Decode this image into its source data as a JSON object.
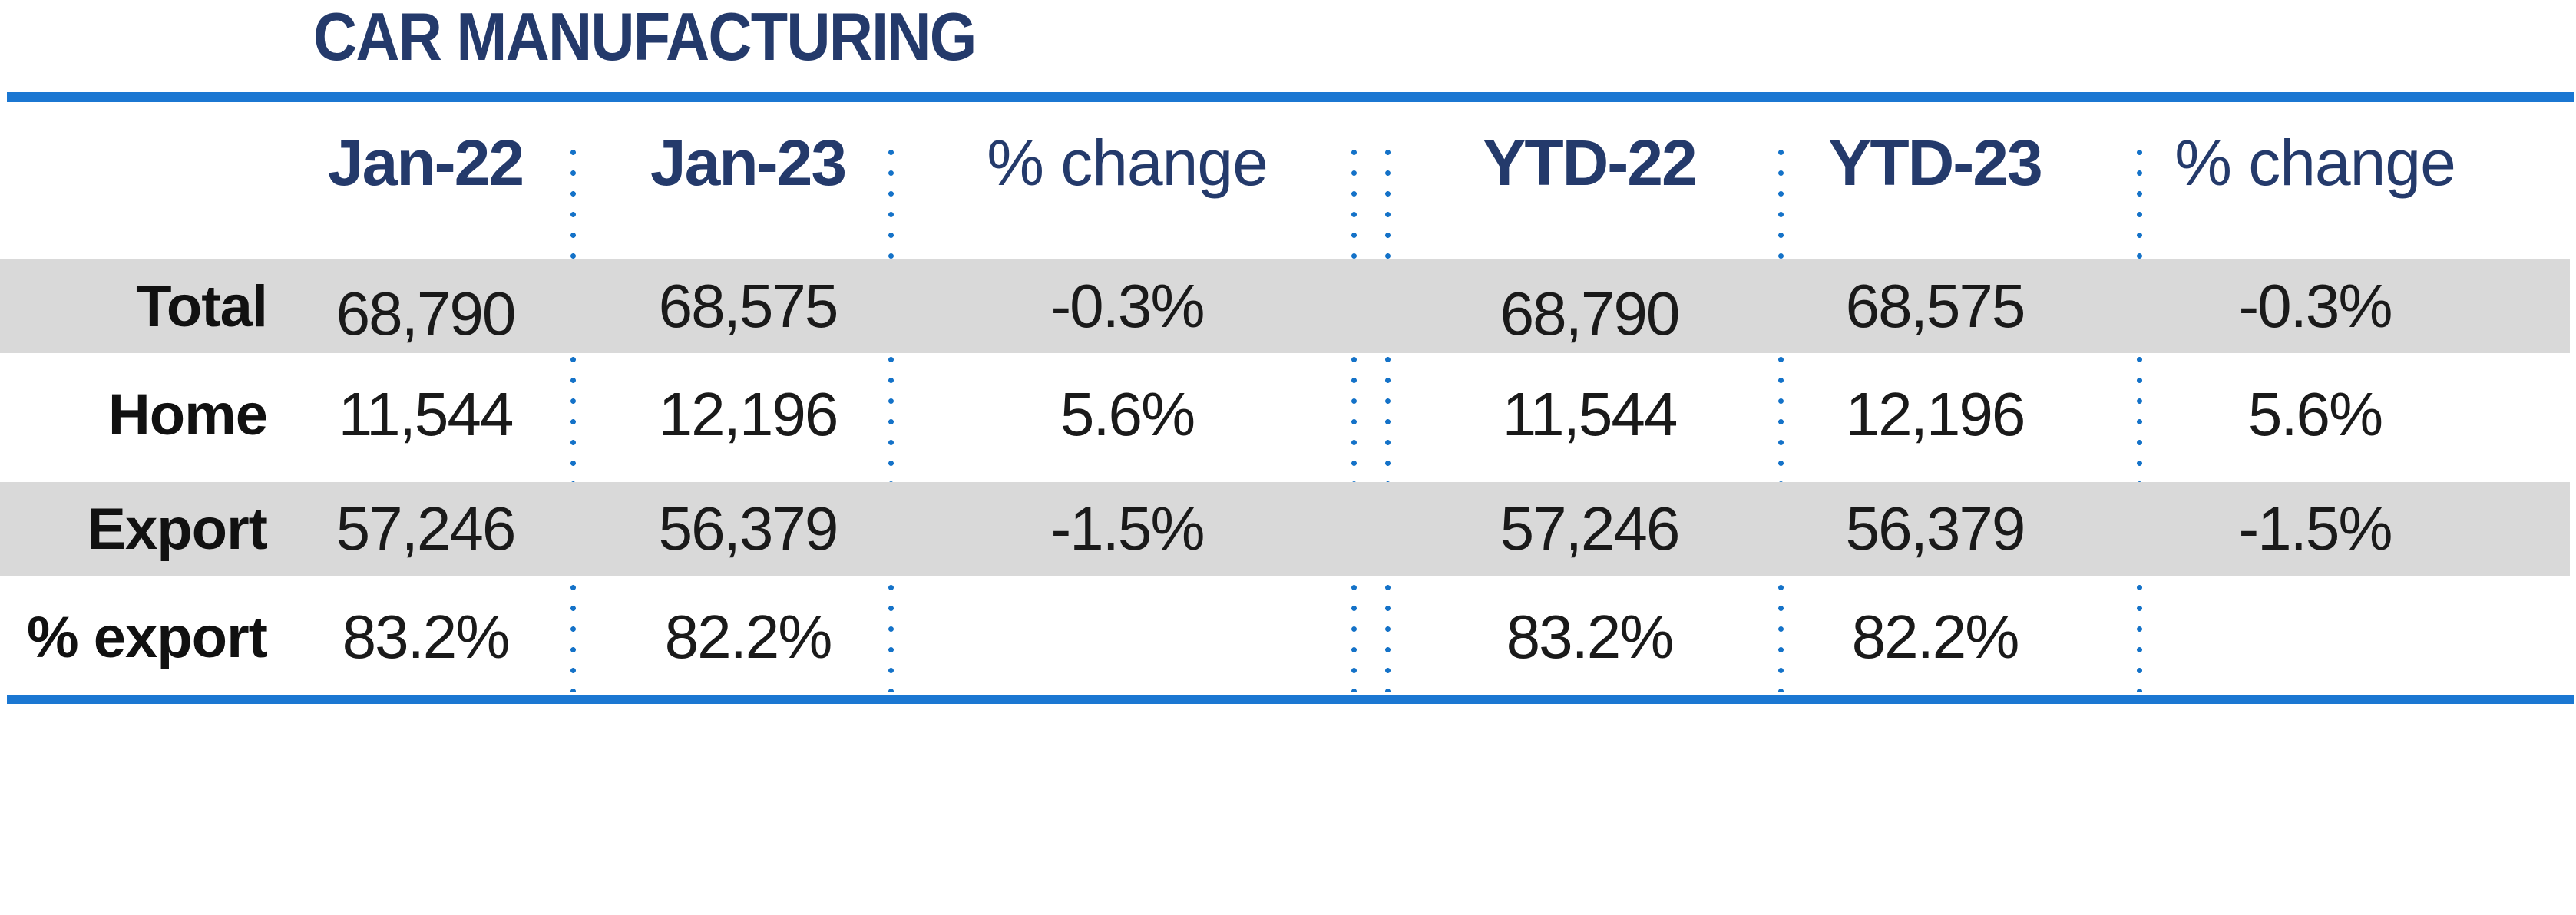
{
  "title": "CAR MANUFACTURING",
  "colors": {
    "navy": "#243A6B",
    "rule_blue": "#1B77D2",
    "dot_blue": "#1472C8",
    "band_grey": "#D9D9D9",
    "text": "#1A1A1A"
  },
  "chart_data": {
    "type": "table",
    "title": "CAR MANUFACTURING",
    "columns": [
      "Jan-22",
      "Jan-23",
      "% change",
      "YTD-22",
      "YTD-23",
      "% change"
    ],
    "row_labels": [
      "Total",
      "Home",
      "Export",
      "% export"
    ],
    "rows": [
      {
        "label": "Total",
        "values": [
          "68,790",
          "68,575",
          "-0.3%",
          "68,790",
          "68,575",
          "-0.3%"
        ]
      },
      {
        "label": "Home",
        "values": [
          "11,544",
          "12,196",
          "5.6%",
          "11,544",
          "12,196",
          "5.6%"
        ]
      },
      {
        "label": "Export",
        "values": [
          "57,246",
          "56,379",
          "-1.5%",
          "57,246",
          "56,379",
          "-1.5%"
        ]
      },
      {
        "label": "% export",
        "values": [
          "83.2%",
          "82.2%",
          "",
          "83.2%",
          "82.2%",
          ""
        ]
      }
    ],
    "layout_hints": {
      "shaded_rows": [
        "Total",
        "Export"
      ],
      "column_groups": [
        "Jan",
        "YTD"
      ],
      "grid": "dotted vertical separators, double dotted line between Jan and YTD blocks"
    }
  }
}
